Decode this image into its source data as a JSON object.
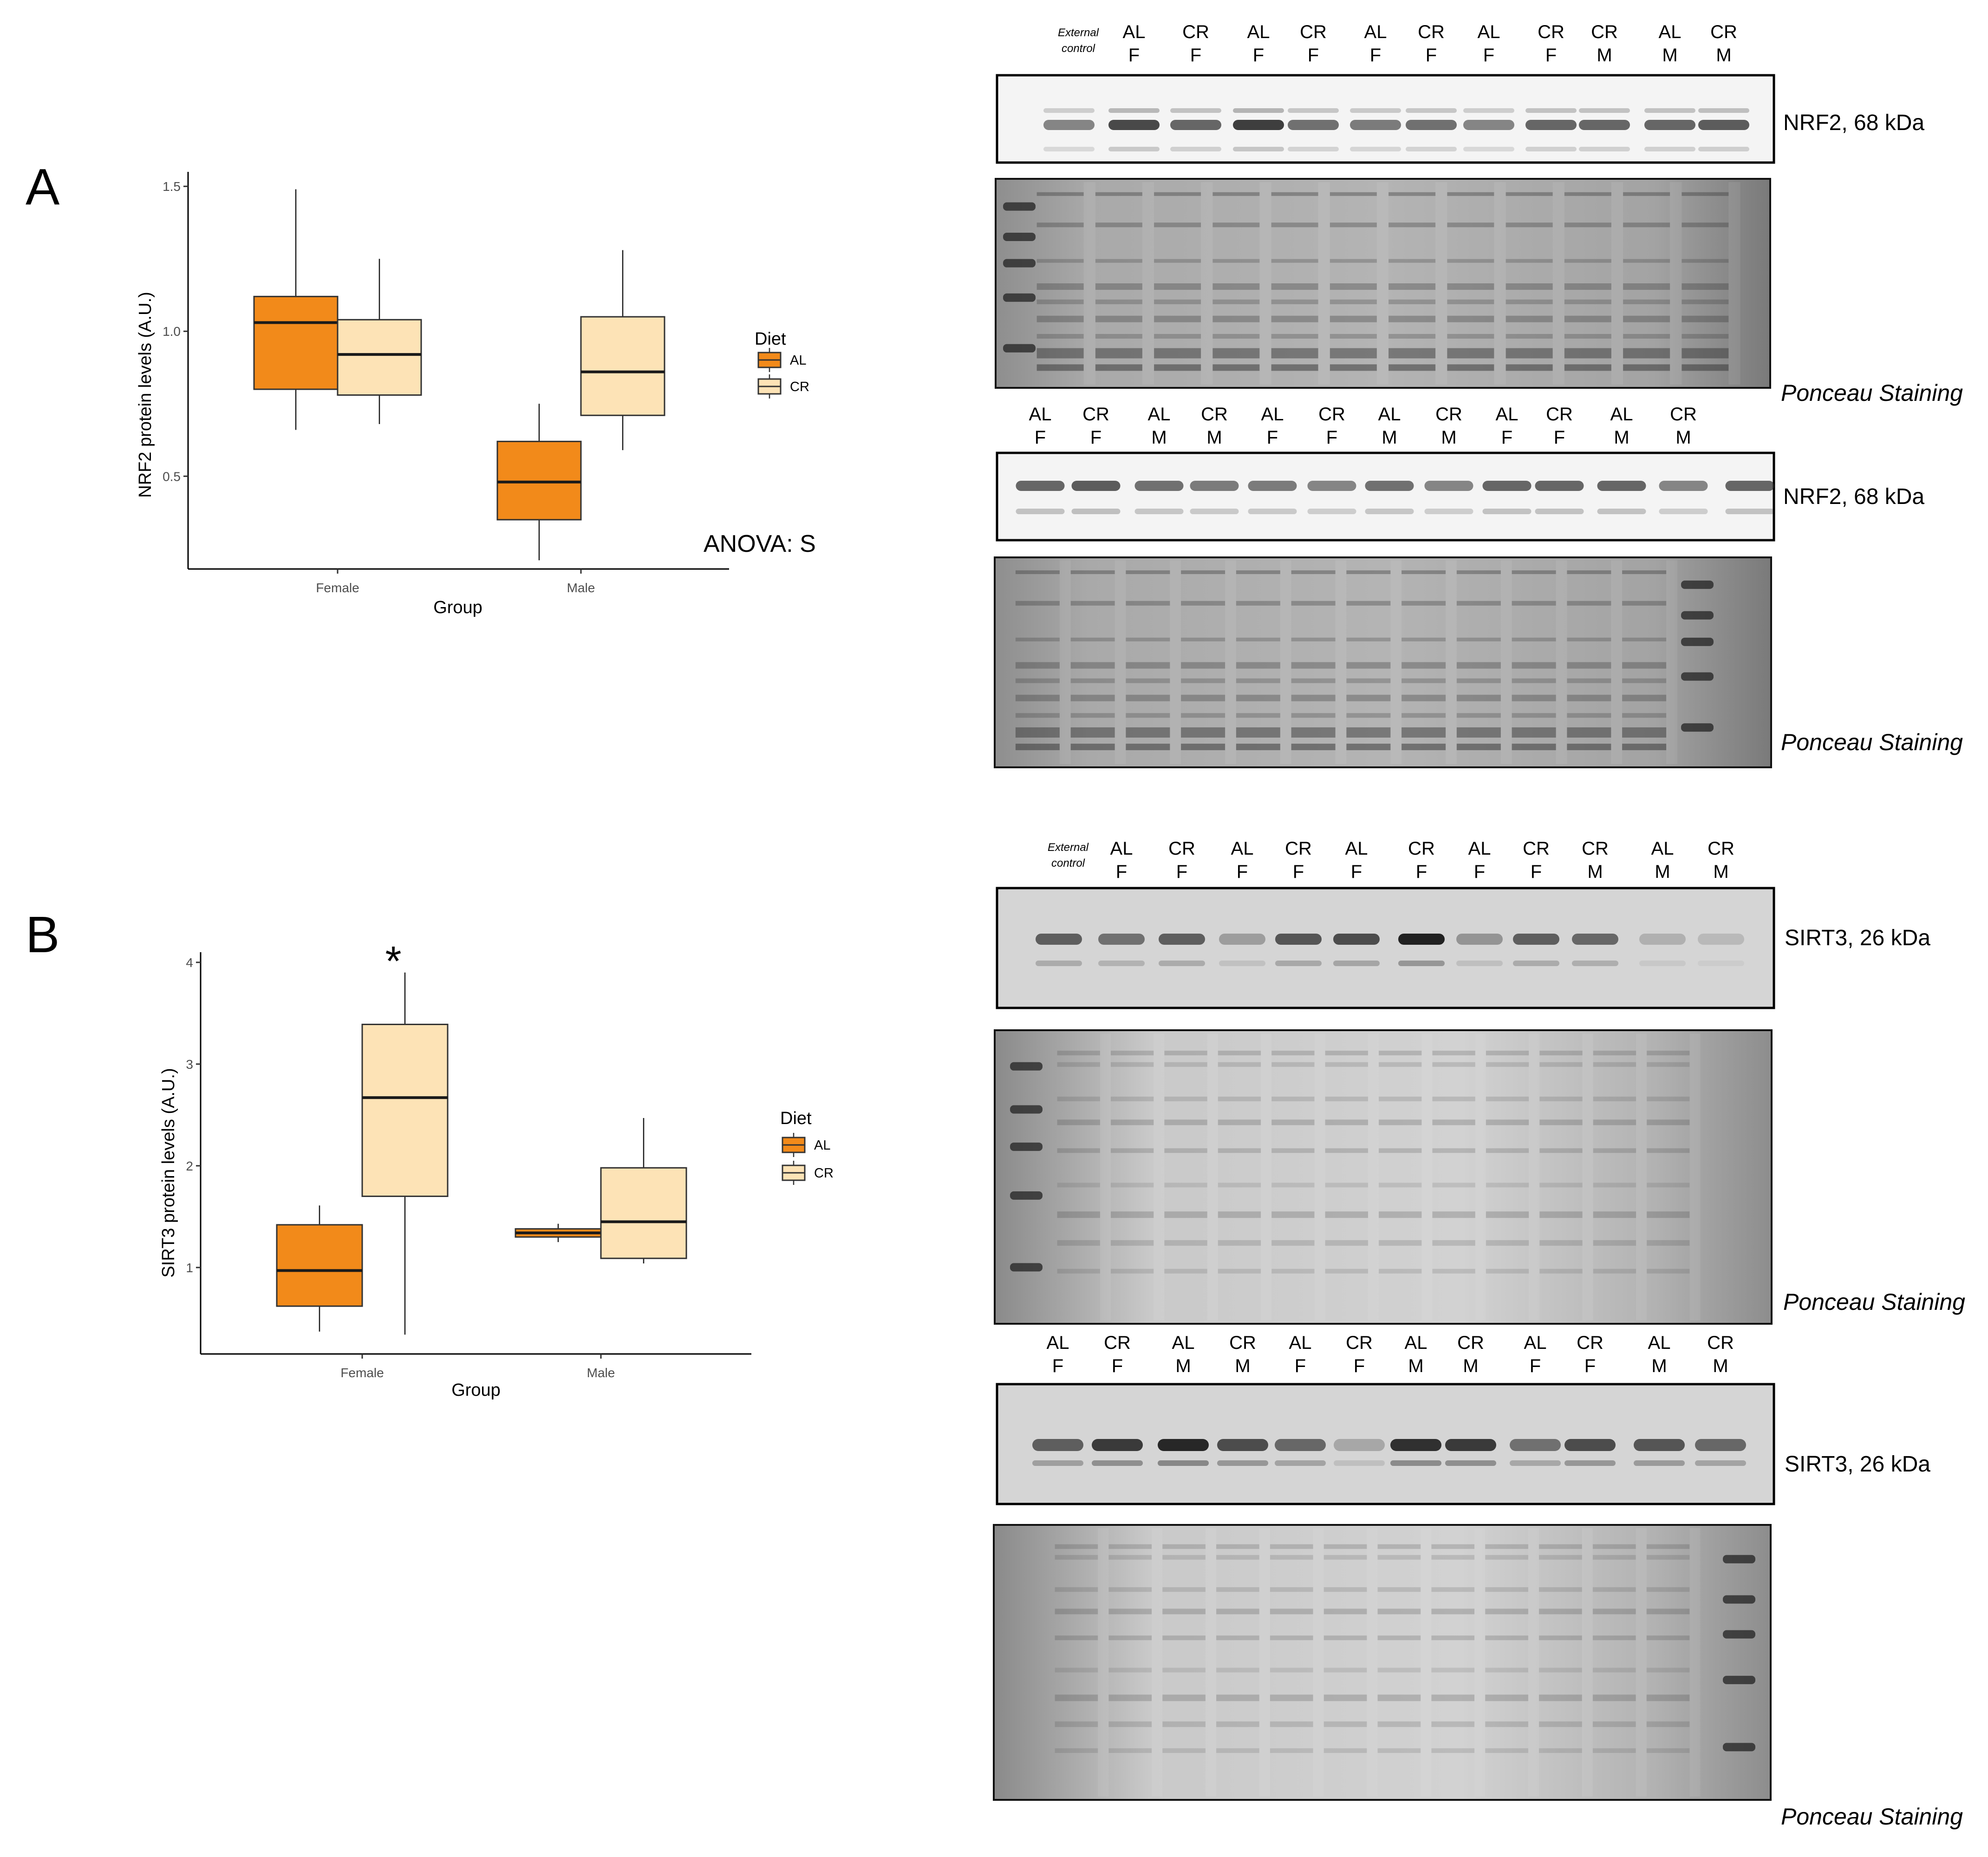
{
  "panels": {
    "a": {
      "letter": "A",
      "anova": "ANOVA: S"
    },
    "b": {
      "letter": "B",
      "significance": "*"
    }
  },
  "colors": {
    "AL": "#f28a1a",
    "CR": "#fde3b6",
    "median": "#1a1a1a",
    "whisker": "#1a1a1a"
  },
  "chart_data": [
    {
      "type": "box",
      "panel": "A",
      "title": "",
      "xlabel": "Group",
      "ylabel": "NRF2 protein levels (A.U.)",
      "categories": [
        "Female",
        "Male"
      ],
      "ylim": [
        0.18,
        1.55
      ],
      "yticks": [
        0.5,
        1.0,
        1.5
      ],
      "ytick_labels": [
        "0.5",
        "1.0",
        "1.5"
      ],
      "legend": {
        "title": "Diet",
        "entries": [
          "AL",
          "CR"
        ],
        "position": "right"
      },
      "grid": false,
      "series": [
        {
          "name": "AL",
          "boxes": [
            {
              "category": "Female",
              "min": 0.66,
              "q1": 0.8,
              "median": 1.03,
              "q3": 1.12,
              "max": 1.49
            },
            {
              "category": "Male",
              "min": 0.21,
              "q1": 0.35,
              "median": 0.48,
              "q3": 0.62,
              "max": 0.75
            }
          ]
        },
        {
          "name": "CR",
          "boxes": [
            {
              "category": "Female",
              "min": 0.68,
              "q1": 0.78,
              "median": 0.92,
              "q3": 1.04,
              "max": 1.25
            },
            {
              "category": "Male",
              "min": 0.59,
              "q1": 0.71,
              "median": 0.86,
              "q3": 1.05,
              "max": 1.28
            }
          ]
        }
      ]
    },
    {
      "type": "box",
      "panel": "B",
      "title": "",
      "xlabel": "Group",
      "ylabel": "SIRT3 protein levels (A.U.)",
      "categories": [
        "Female",
        "Male"
      ],
      "ylim": [
        0.15,
        4.1
      ],
      "yticks": [
        1,
        2,
        3,
        4
      ],
      "ytick_labels": [
        "1",
        "2",
        "3",
        "4"
      ],
      "legend": {
        "title": "Diet",
        "entries": [
          "AL",
          "CR"
        ],
        "position": "right"
      },
      "grid": false,
      "series": [
        {
          "name": "AL",
          "boxes": [
            {
              "category": "Female",
              "min": 0.37,
              "q1": 0.62,
              "median": 0.97,
              "q3": 1.42,
              "max": 1.61
            },
            {
              "category": "Male",
              "min": 1.25,
              "q1": 1.3,
              "median": 1.34,
              "q3": 1.38,
              "max": 1.43
            }
          ]
        },
        {
          "name": "CR",
          "boxes": [
            {
              "category": "Female",
              "min": 0.34,
              "q1": 1.7,
              "median": 2.67,
              "q3": 3.39,
              "max": 3.9
            },
            {
              "category": "Male",
              "min": 1.04,
              "q1": 1.09,
              "median": 1.45,
              "q3": 1.98,
              "max": 2.47
            }
          ]
        }
      ]
    }
  ],
  "blots": {
    "nrf2_top": {
      "external_label": [
        "External",
        "control"
      ],
      "lanes": [
        [
          "AL",
          "F"
        ],
        [
          "CR",
          "F"
        ],
        [
          "AL",
          "F"
        ],
        [
          "CR",
          "F"
        ],
        [
          "AL",
          "F"
        ],
        [
          "CR",
          "F"
        ],
        [
          "AL",
          "F"
        ],
        [
          "CR",
          "F"
        ],
        [
          "CR",
          "M"
        ],
        [
          "AL",
          "M"
        ],
        [
          "CR",
          "M"
        ]
      ],
      "protein_label": "NRF2, 68 kDa",
      "ponceau_label": "Ponceau Staining"
    },
    "nrf2_bottom": {
      "lanes": [
        [
          "AL",
          "F"
        ],
        [
          "CR",
          "F"
        ],
        [
          "AL",
          "M"
        ],
        [
          "CR",
          "M"
        ],
        [
          "AL",
          "F"
        ],
        [
          "CR",
          "F"
        ],
        [
          "AL",
          "M"
        ],
        [
          "CR",
          "M"
        ],
        [
          "AL",
          "F"
        ],
        [
          "CR",
          "F"
        ],
        [
          "AL",
          "M"
        ],
        [
          "CR",
          "M"
        ]
      ],
      "protein_label": "NRF2, 68 kDa",
      "ponceau_label": "Ponceau Staining"
    },
    "sirt3_top": {
      "external_label": [
        "External",
        "control"
      ],
      "lanes": [
        [
          "AL",
          "F"
        ],
        [
          "CR",
          "F"
        ],
        [
          "AL",
          "F"
        ],
        [
          "CR",
          "F"
        ],
        [
          "AL",
          "F"
        ],
        [
          "CR",
          "F"
        ],
        [
          "AL",
          "F"
        ],
        [
          "CR",
          "F"
        ],
        [
          "CR",
          "M"
        ],
        [
          "AL",
          "M"
        ],
        [
          "CR",
          "M"
        ]
      ],
      "protein_label": "SIRT3, 26 kDa",
      "ponceau_label": "Ponceau Staining"
    },
    "sirt3_bottom": {
      "lanes": [
        [
          "AL",
          "F"
        ],
        [
          "CR",
          "F"
        ],
        [
          "AL",
          "M"
        ],
        [
          "CR",
          "M"
        ],
        [
          "AL",
          "F"
        ],
        [
          "CR",
          "F"
        ],
        [
          "AL",
          "M"
        ],
        [
          "CR",
          "M"
        ],
        [
          "AL",
          "F"
        ],
        [
          "CR",
          "F"
        ],
        [
          "AL",
          "M"
        ],
        [
          "CR",
          "M"
        ]
      ],
      "protein_label": "SIRT3, 26 kDa",
      "ponceau_label": "Ponceau Staining"
    }
  }
}
